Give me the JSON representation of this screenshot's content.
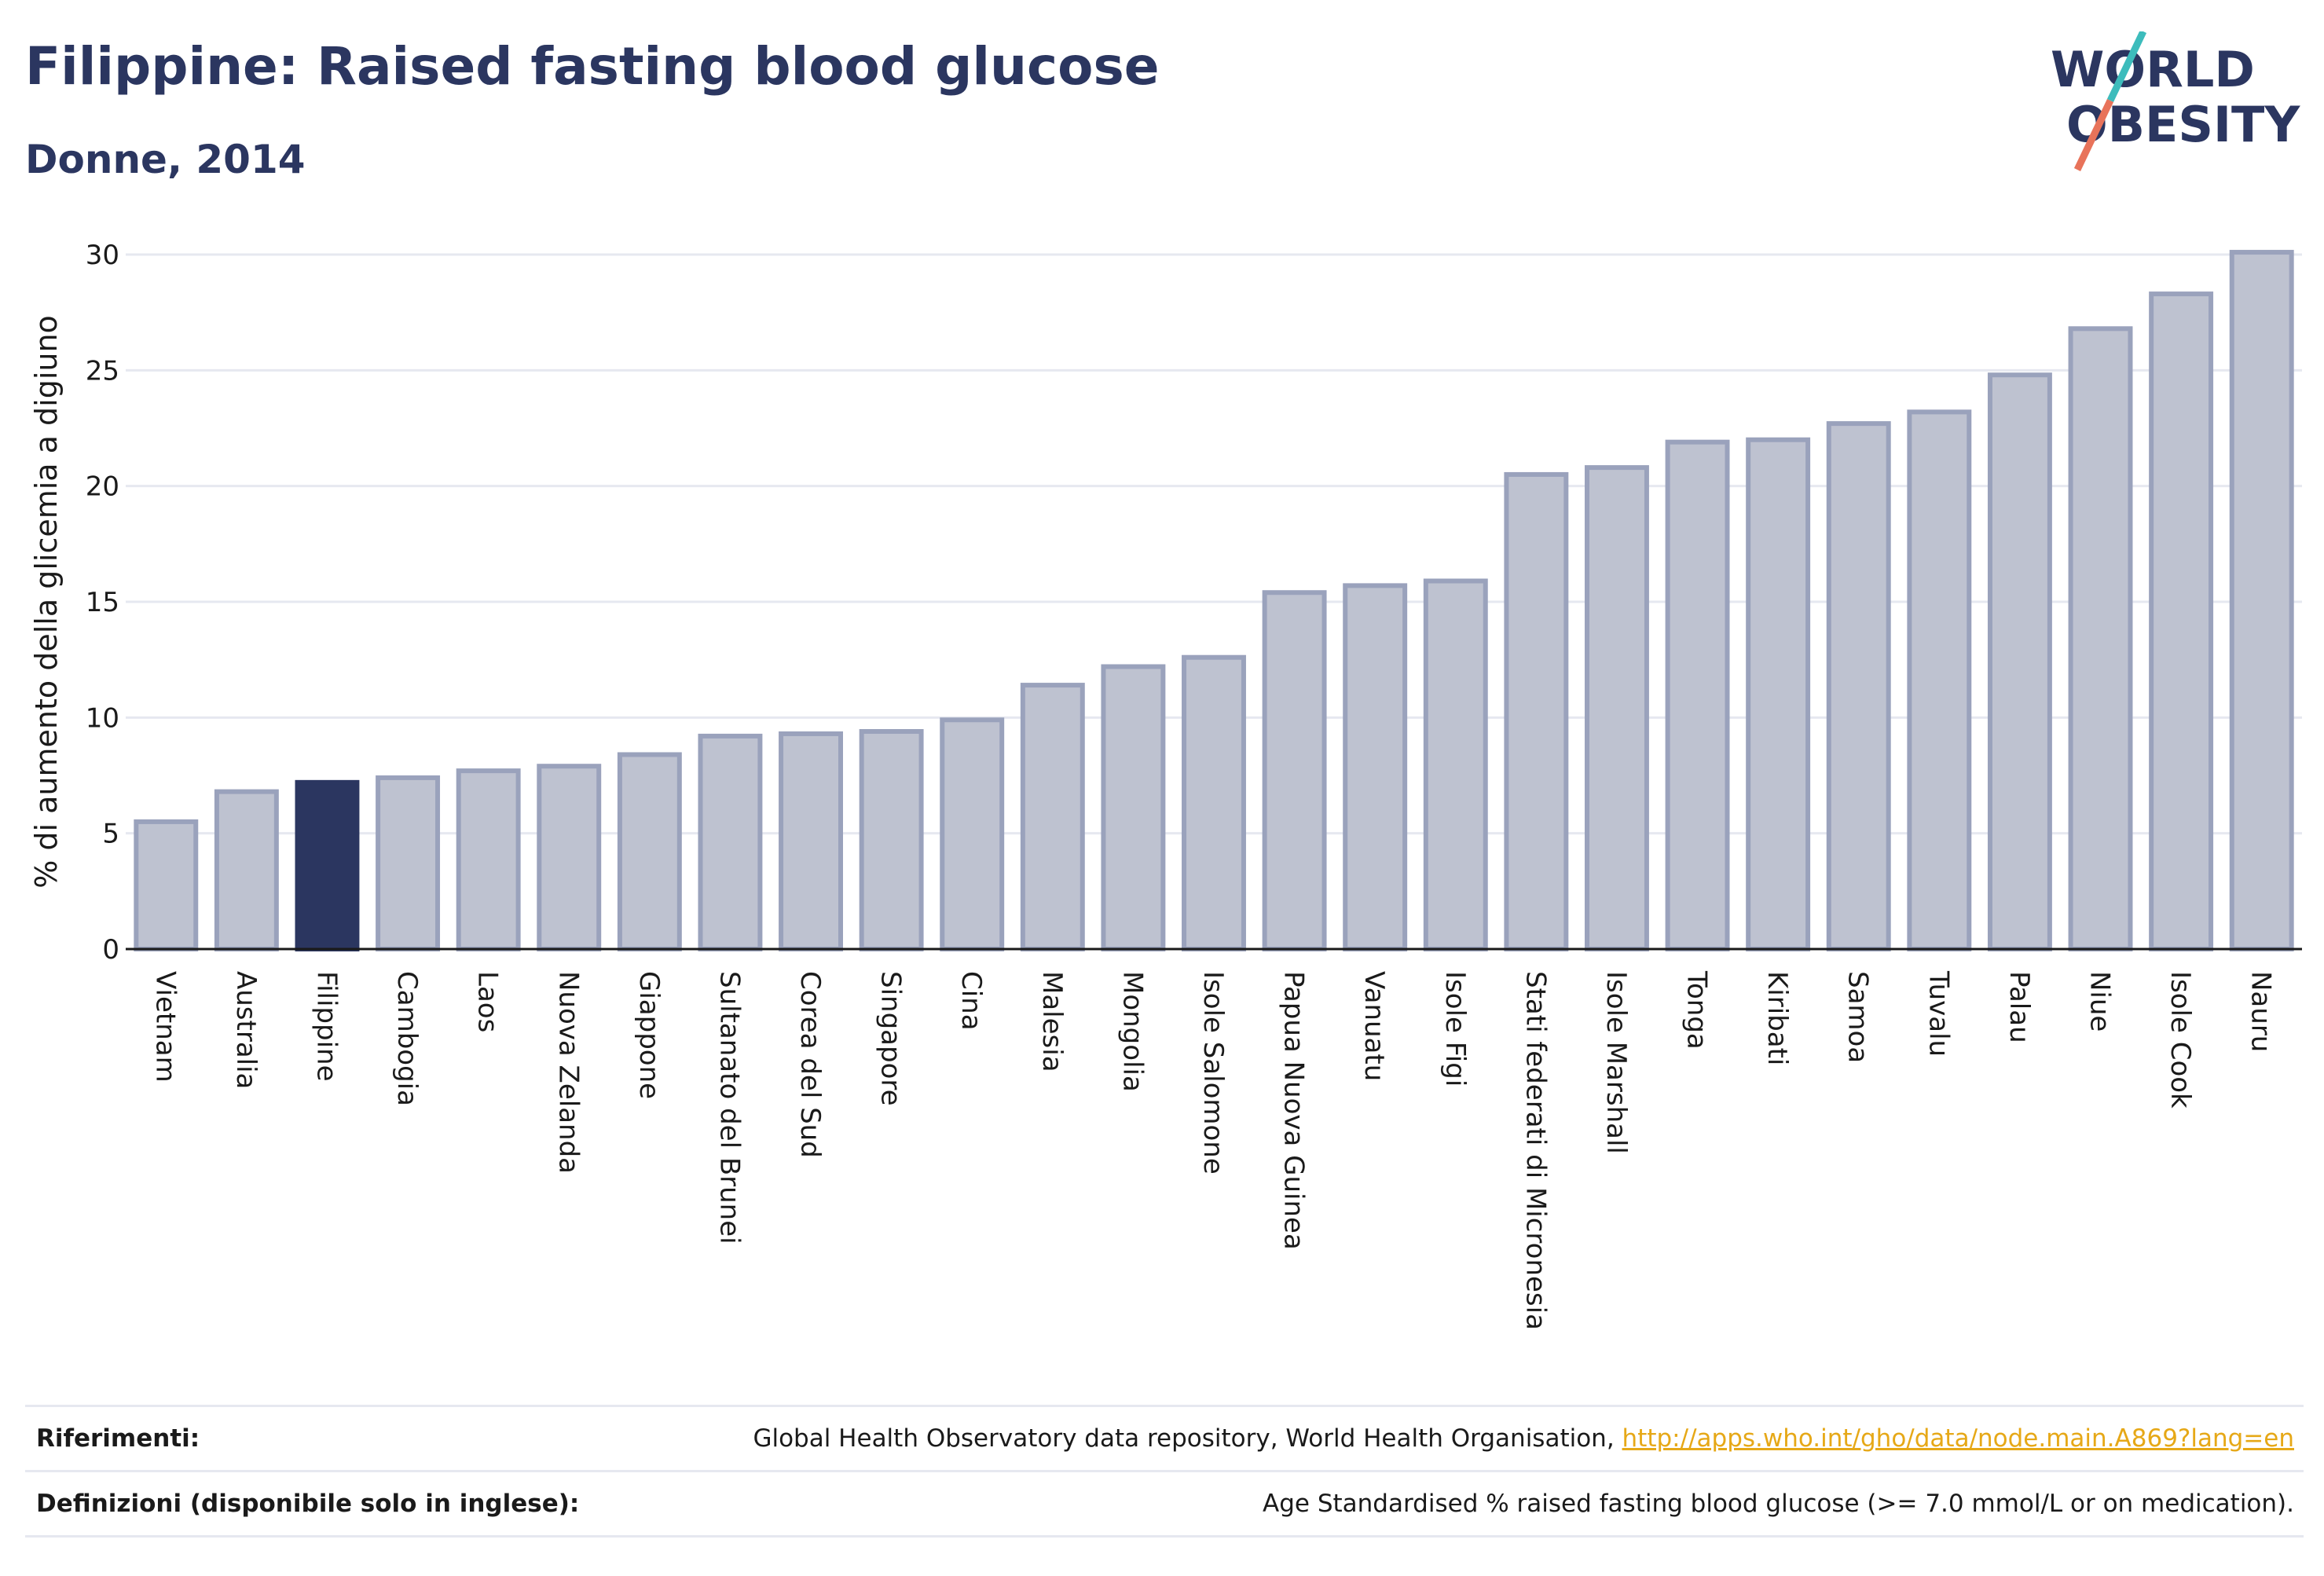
{
  "header": {
    "title": "Filippine: Raised fasting blood glucose",
    "subtitle": "Donne, 2014"
  },
  "logo": {
    "line1": "WORLD",
    "line2": "OBESITY",
    "colors": {
      "text": "#2b3660",
      "slash_top": "#3dbcbc",
      "slash_bottom": "#e8735a"
    }
  },
  "colors": {
    "bar_fill": "#bec2d0",
    "bar_stroke": "#9aa2bc",
    "highlight": "#2b3660",
    "grid": "#e6e8f0",
    "axis": "#1a1a1a"
  },
  "chart_data": {
    "type": "bar",
    "title": "Filippine: Raised fasting blood glucose",
    "subtitle": "Donne, 2014",
    "ylabel": "% di aumento della glicemia a digiuno",
    "xlabel": "",
    "ylim": [
      0,
      30
    ],
    "yticks": [
      0,
      5,
      10,
      15,
      20,
      25,
      30
    ],
    "grid": true,
    "highlight": "Filippine",
    "categories": [
      "Vietnam",
      "Australia",
      "Filippine",
      "Cambogia",
      "Laos",
      "Nuova Zelanda",
      "Giappone",
      "Sultanato del Brunei",
      "Corea del Sud",
      "Singapore",
      "Cina",
      "Malesia",
      "Mongolia",
      "Isole Salomone",
      "Papua Nuova Guinea",
      "Vanuatu",
      "Isole Figi",
      "Stati federati di Micronesia",
      "Isole Marshall",
      "Tonga",
      "Kiribati",
      "Samoa",
      "Tuvalu",
      "Palau",
      "Niue",
      "Isole Cook",
      "Nauru"
    ],
    "values": [
      5.5,
      6.8,
      7.2,
      7.4,
      7.7,
      7.9,
      8.4,
      9.2,
      9.3,
      9.4,
      9.9,
      11.4,
      12.2,
      12.6,
      15.4,
      15.7,
      15.9,
      20.5,
      20.8,
      21.9,
      22.0,
      22.7,
      23.2,
      24.8,
      26.8,
      28.3,
      30.1
    ]
  },
  "footer": {
    "references_label": "Riferimenti:",
    "references_text": "Global Health Observatory data repository, World Health Organisation, ",
    "references_link": "http://apps.who.int/gho/data/node.main.A869?lang=en",
    "definitions_label": "Definizioni (disponibile solo in inglese):",
    "definitions_text": "Age Standardised % raised fasting blood glucose (>= 7.0 mmol/L or on medication)."
  }
}
